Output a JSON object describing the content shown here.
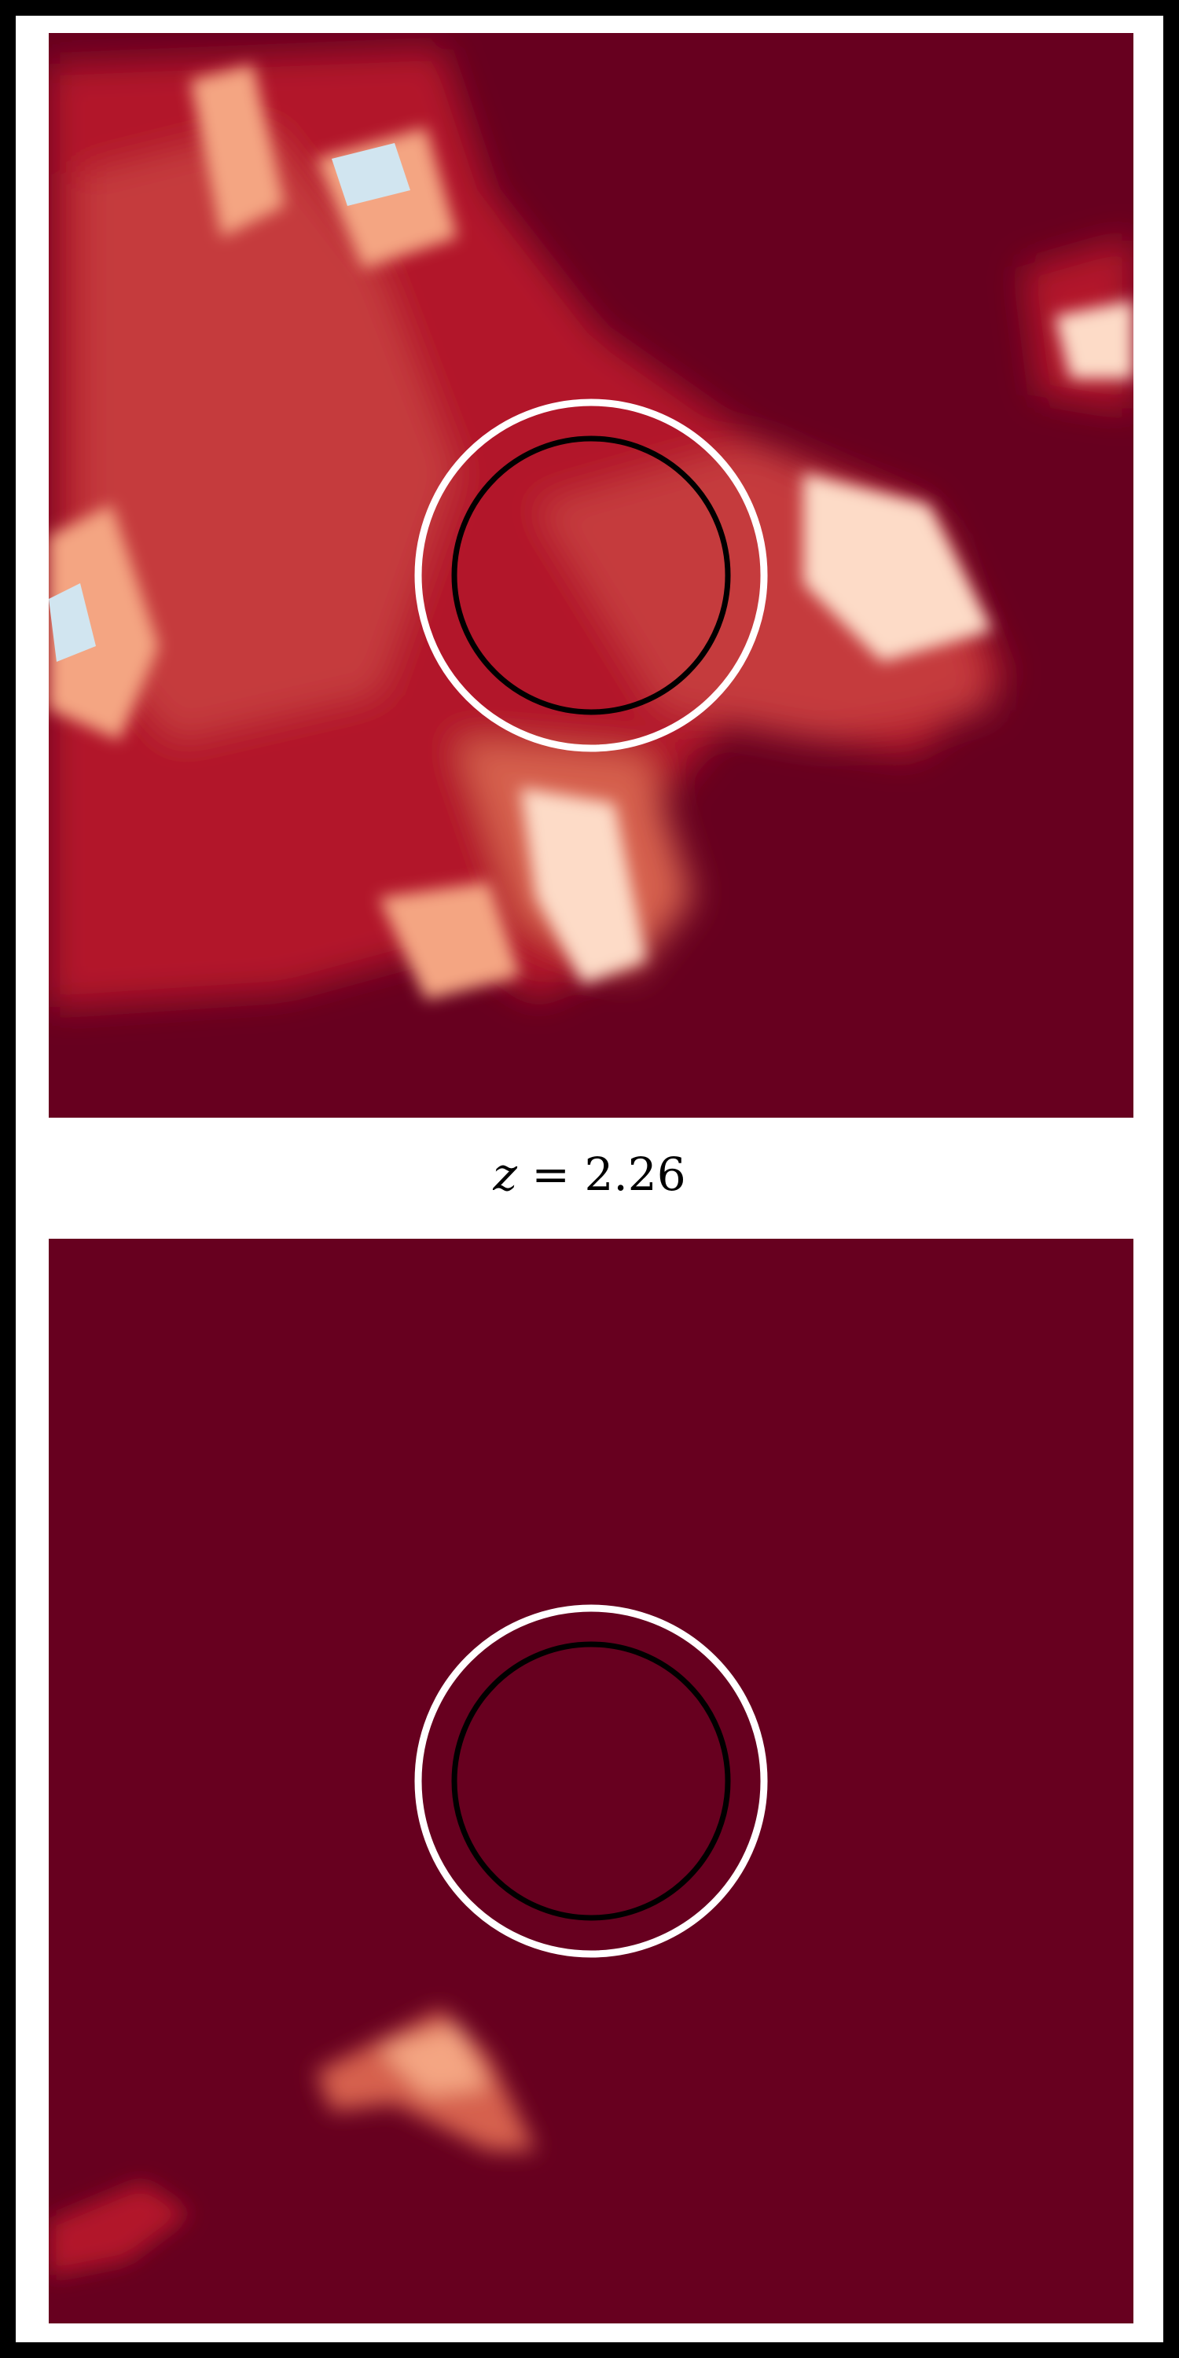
{
  "figure": {
    "redshift_label_var": "z",
    "redshift_label_eq": " = ",
    "redshift_label_value": "2.26",
    "colormap": "RdBu",
    "background_color": "#67001f",
    "circles": [
      {
        "role": "outer",
        "color": "#ffffff"
      },
      {
        "role": "inner",
        "color": "#000000"
      }
    ]
  }
}
